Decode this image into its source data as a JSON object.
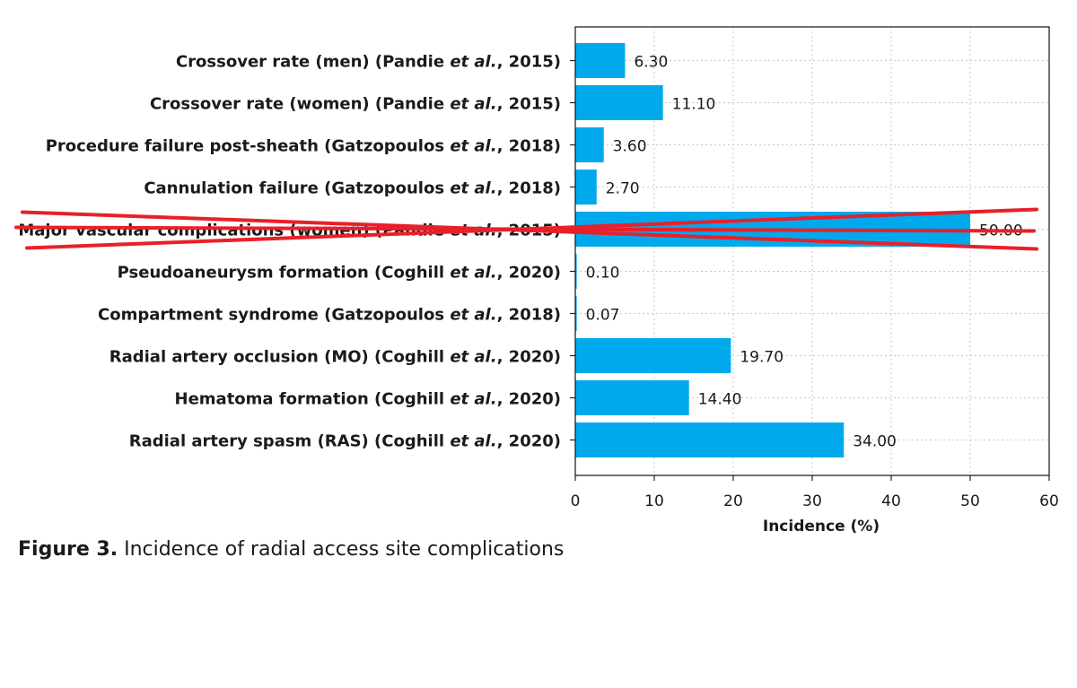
{
  "caption": {
    "figure_number": "Figure 3.",
    "text": "Incidence of radial access site complications"
  },
  "chart_data": {
    "type": "bar",
    "orientation": "horizontal",
    "xlabel": "Incidence (%)",
    "xlim": [
      0,
      60
    ],
    "xticks": [
      0,
      10,
      20,
      30,
      40,
      50,
      60
    ],
    "grid": true,
    "bar_color": "#00a9ec",
    "strike_color": "#e8202a",
    "categories": [
      {
        "main": "Crossover rate (men) (Pandie ",
        "italic": "et al.",
        "tail": ", 2015)"
      },
      {
        "main": "Crossover rate (women) (Pandie ",
        "italic": "et al.",
        "tail": ", 2015)"
      },
      {
        "main": "Procedure failure post-sheath (Gatzopoulos ",
        "italic": "et al.",
        "tail": ", 2018)"
      },
      {
        "main": "Cannulation failure (Gatzopoulos ",
        "italic": "et al.",
        "tail": ", 2018)"
      },
      {
        "main": "Major vascular complications (women) (Pandie ",
        "italic": "et al.",
        "tail": ", 2015)"
      },
      {
        "main": "Pseudoaneurysm formation (Coghill ",
        "italic": "et al.",
        "tail": ", 2020)"
      },
      {
        "main": "Compartment syndrome (Gatzopoulos ",
        "italic": "et al.",
        "tail": ", 2018)"
      },
      {
        "main": "Radial artery occlusion (MO) (Coghill ",
        "italic": "et al.",
        "tail": ", 2020)"
      },
      {
        "main": "Hematoma formation (Coghill ",
        "italic": "et al.",
        "tail": ", 2020)"
      },
      {
        "main": "Radial artery spasm (RAS) (Coghill ",
        "italic": "et al.",
        "tail": ", 2020)"
      }
    ],
    "values": [
      6.3,
      11.1,
      3.6,
      2.7,
      50.0,
      0.1,
      0.07,
      19.7,
      14.4,
      34.0
    ],
    "value_labels": [
      "6.30",
      "11.10",
      "3.60",
      "2.70",
      "50.00",
      "0.10",
      "0.07",
      "19.70",
      "14.40",
      "34.00"
    ],
    "struck_out_category_index": 4
  }
}
